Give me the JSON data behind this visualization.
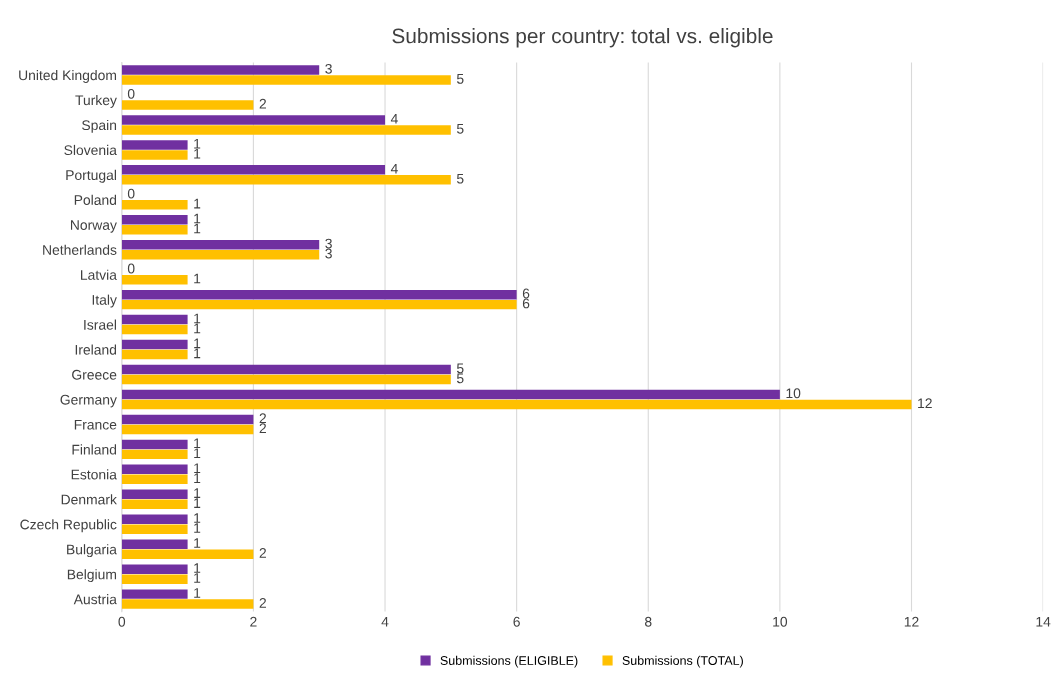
{
  "chart_data": {
    "type": "bar",
    "orientation": "horizontal",
    "title": "Submissions per country: total vs. eligible",
    "categories": [
      "United Kingdom",
      "Turkey",
      "Spain",
      "Slovenia",
      "Portugal",
      "Poland",
      "Norway",
      "Netherlands",
      "Latvia",
      "Italy",
      "Israel",
      "Ireland",
      "Greece",
      "Germany",
      "France",
      "Finland",
      "Estonia",
      "Denmark",
      "Czech Republic",
      "Bulgaria",
      "Belgium",
      "Austria"
    ],
    "series": [
      {
        "name": "Submissions (ELIGIBLE)",
        "color": "#7030a0",
        "values": [
          3,
          0,
          4,
          1,
          4,
          0,
          1,
          3,
          0,
          6,
          1,
          1,
          5,
          10,
          2,
          1,
          1,
          1,
          1,
          1,
          1,
          1
        ]
      },
      {
        "name": "Submissions (TOTAL)",
        "color": "#ffc000",
        "values": [
          5,
          2,
          5,
          1,
          5,
          1,
          1,
          3,
          1,
          6,
          1,
          1,
          5,
          12,
          2,
          1,
          1,
          1,
          1,
          2,
          1,
          2
        ]
      }
    ],
    "xlim": [
      0,
      14
    ],
    "xticks": [
      0,
      2,
      4,
      6,
      8,
      10,
      12,
      14
    ],
    "grid": "x",
    "legend": "bottom",
    "data_labels": true
  }
}
